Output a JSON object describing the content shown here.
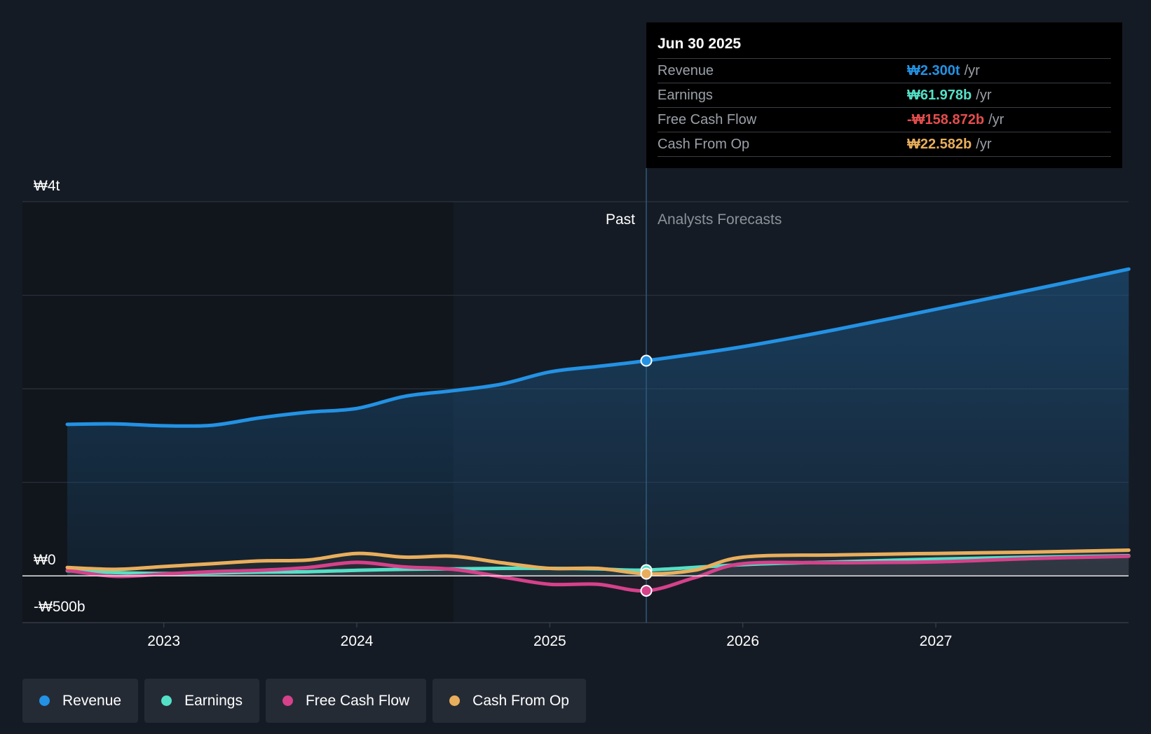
{
  "chart_data": {
    "type": "line",
    "currency": "₩",
    "y_unit": "billions",
    "ylim": [
      -500,
      4000
    ],
    "y_tick_labels": [
      {
        "value": 4000,
        "label": "₩4t"
      },
      {
        "value": 0,
        "label": "₩0"
      },
      {
        "value": -500,
        "label": "-₩500b"
      }
    ],
    "gridlines": [
      4000,
      3000,
      2000,
      1000
    ],
    "x_range": [
      2022.5,
      2028.0
    ],
    "x_ticks": [
      2023,
      2024,
      2025,
      2026,
      2027
    ],
    "x_tick_labels": [
      "2023",
      "2024",
      "2025",
      "2026",
      "2027"
    ],
    "past_label": "Past",
    "forecast_label": "Analysts Forecasts",
    "past_shade_start": 2024.5,
    "divider_x": 2025.5,
    "series": [
      {
        "name": "Revenue",
        "color": "#2392e4",
        "fill": true,
        "points": [
          [
            2022.5,
            1620
          ],
          [
            2022.75,
            1625
          ],
          [
            2023.0,
            1605
          ],
          [
            2023.25,
            1610
          ],
          [
            2023.5,
            1690
          ],
          [
            2023.75,
            1750
          ],
          [
            2024.0,
            1790
          ],
          [
            2024.25,
            1920
          ],
          [
            2024.5,
            1980
          ],
          [
            2024.75,
            2050
          ],
          [
            2025.0,
            2180
          ],
          [
            2025.25,
            2240
          ],
          [
            2025.5,
            2300
          ],
          [
            2026.0,
            2450
          ],
          [
            2026.5,
            2640
          ],
          [
            2027.0,
            2850
          ],
          [
            2027.5,
            3060
          ],
          [
            2028.0,
            3280
          ]
        ]
      },
      {
        "name": "Earnings",
        "color": "#54e0c7",
        "points": [
          [
            2022.5,
            55
          ],
          [
            2022.75,
            35
          ],
          [
            2023.0,
            25
          ],
          [
            2023.25,
            30
          ],
          [
            2023.5,
            40
          ],
          [
            2023.75,
            45
          ],
          [
            2024.0,
            60
          ],
          [
            2024.25,
            70
          ],
          [
            2024.5,
            75
          ],
          [
            2024.75,
            80
          ],
          [
            2025.0,
            80
          ],
          [
            2025.25,
            75
          ],
          [
            2025.5,
            62
          ],
          [
            2026.0,
            120
          ],
          [
            2026.5,
            150
          ],
          [
            2027.0,
            180
          ],
          [
            2027.5,
            200
          ],
          [
            2028.0,
            215
          ]
        ]
      },
      {
        "name": "Free Cash Flow",
        "color": "#d6418b",
        "points": [
          [
            2022.5,
            60
          ],
          [
            2022.75,
            -5
          ],
          [
            2023.0,
            20
          ],
          [
            2023.25,
            45
          ],
          [
            2023.5,
            60
          ],
          [
            2023.75,
            90
          ],
          [
            2024.0,
            145
          ],
          [
            2024.25,
            95
          ],
          [
            2024.5,
            70
          ],
          [
            2024.75,
            -10
          ],
          [
            2025.0,
            -90
          ],
          [
            2025.25,
            -90
          ],
          [
            2025.5,
            -159
          ],
          [
            2025.75,
            -20
          ],
          [
            2026.0,
            130
          ],
          [
            2026.5,
            140
          ],
          [
            2027.0,
            150
          ],
          [
            2027.5,
            185
          ],
          [
            2028.0,
            210
          ]
        ]
      },
      {
        "name": "Cash From Op",
        "color": "#e9ae5c",
        "points": [
          [
            2022.5,
            90
          ],
          [
            2022.75,
            70
          ],
          [
            2023.0,
            100
          ],
          [
            2023.25,
            130
          ],
          [
            2023.5,
            160
          ],
          [
            2023.75,
            170
          ],
          [
            2024.0,
            240
          ],
          [
            2024.25,
            200
          ],
          [
            2024.5,
            210
          ],
          [
            2024.75,
            140
          ],
          [
            2025.0,
            80
          ],
          [
            2025.25,
            80
          ],
          [
            2025.5,
            23
          ],
          [
            2025.75,
            60
          ],
          [
            2026.0,
            200
          ],
          [
            2026.5,
            225
          ],
          [
            2027.0,
            240
          ],
          [
            2027.5,
            255
          ],
          [
            2028.0,
            275
          ]
        ]
      }
    ]
  },
  "tooltip": {
    "date": "Jun 30 2025",
    "rows": [
      {
        "label": "Revenue",
        "value": "₩2.300t",
        "unit": "/yr",
        "color": "#2392e4"
      },
      {
        "label": "Earnings",
        "value": "₩61.978b",
        "unit": "/yr",
        "color": "#54e0c7"
      },
      {
        "label": "Free Cash Flow",
        "value": "-₩158.872b",
        "unit": "/yr",
        "color": "#e64d4d"
      },
      {
        "label": "Cash From Op",
        "value": "₩22.582b",
        "unit": "/yr",
        "color": "#e9ae5c"
      }
    ]
  },
  "legend": [
    {
      "label": "Revenue",
      "color": "#2392e4"
    },
    {
      "label": "Earnings",
      "color": "#54e0c7"
    },
    {
      "label": "Free Cash Flow",
      "color": "#d6418b"
    },
    {
      "label": "Cash From Op",
      "color": "#e9ae5c"
    }
  ]
}
